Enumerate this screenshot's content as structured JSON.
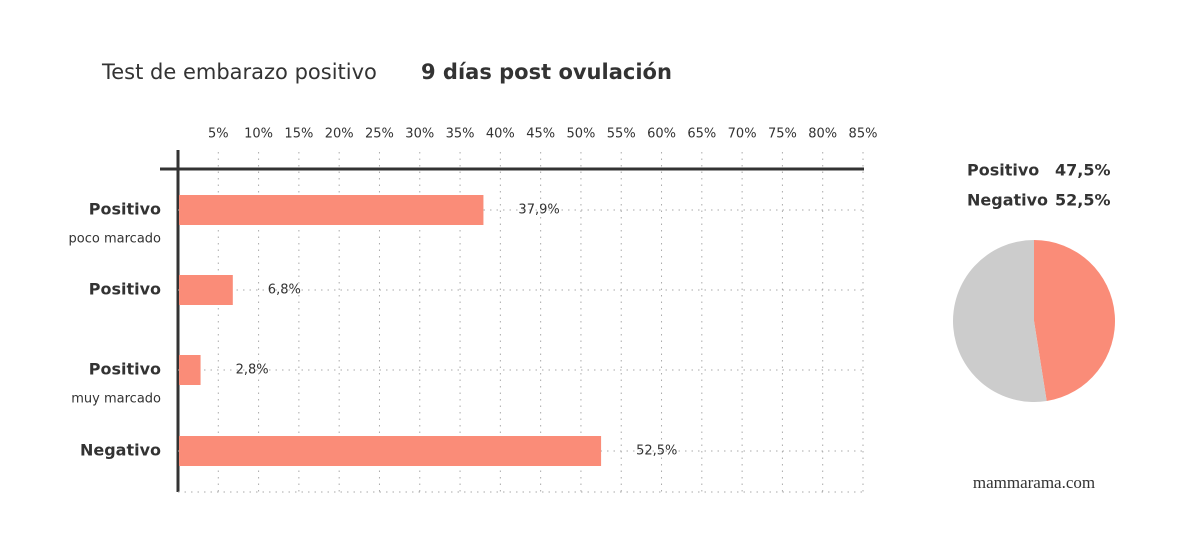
{
  "chart_data": [
    {
      "type": "hbar",
      "title": "Test de embarazo positivo",
      "subtitle": "9 días post ovulación",
      "categories": [
        "Positivo",
        "Positivo",
        "Positivo",
        "Negativo"
      ],
      "sublabels": [
        "poco marcado",
        null,
        "muy marcado",
        null
      ],
      "values": [
        37.9,
        6.8,
        2.8,
        52.5
      ],
      "value_labels": [
        "37,9%",
        "6,8%",
        "2,8%",
        "52,5%"
      ],
      "color": "#fa8c78",
      "xlim": [
        0,
        85
      ],
      "xticks": [
        {
          "value": 5,
          "label": "5%"
        },
        {
          "value": 10,
          "label": "10%"
        },
        {
          "value": 15,
          "label": "15%"
        },
        {
          "value": 20,
          "label": "20%"
        },
        {
          "value": 25,
          "label": "25%"
        },
        {
          "value": 30,
          "label": "30%"
        },
        {
          "value": 35,
          "label": "35%"
        },
        {
          "value": 40,
          "label": "40%"
        },
        {
          "value": 45,
          "label": "45%"
        },
        {
          "value": 50,
          "label": "50%"
        },
        {
          "value": 55,
          "label": "55%"
        },
        {
          "value": 60,
          "label": "60%"
        },
        {
          "value": 65,
          "label": "65%"
        },
        {
          "value": 70,
          "label": "70%"
        },
        {
          "value": 75,
          "label": "75%"
        },
        {
          "value": 80,
          "label": "80%"
        },
        {
          "value": 85,
          "label": "85%"
        }
      ],
      "grid": true
    },
    {
      "type": "pie",
      "categories": [
        "Positivo",
        "Negativo"
      ],
      "values": [
        47.5,
        52.5
      ],
      "value_labels": [
        "47,5%",
        "52,5%"
      ],
      "colors": [
        "#fa8c78",
        "#cccccc"
      ]
    }
  ],
  "footer": "mammarama.com"
}
